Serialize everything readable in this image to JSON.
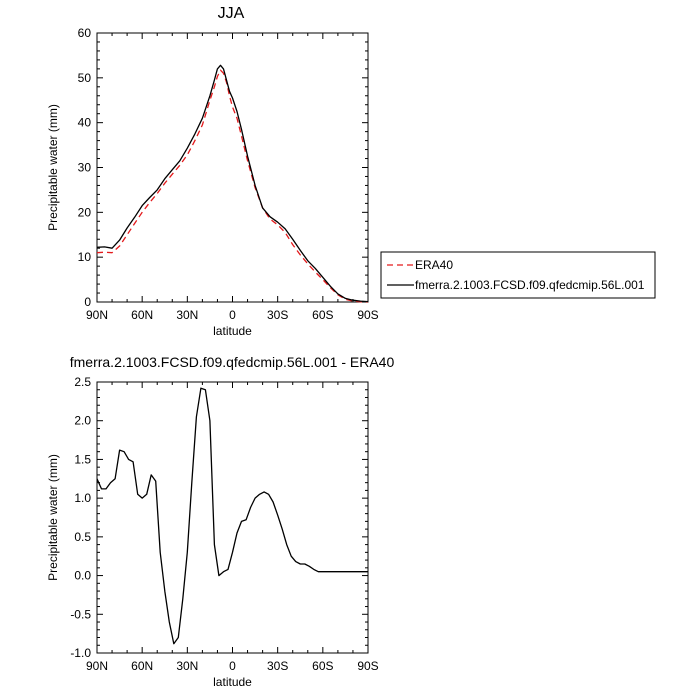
{
  "chart_data": [
    {
      "type": "line",
      "title": "JJA",
      "xlabel": "latitude",
      "ylabel": "Precipitable water (mm)",
      "x_ticks": [
        "90N",
        "60N",
        "30N",
        "0",
        "30S",
        "60S",
        "90S"
      ],
      "y_ticks": [
        "0",
        "10",
        "20",
        "30",
        "40",
        "50",
        "60"
      ],
      "xlim": [
        90,
        -90
      ],
      "ylim": [
        0,
        60
      ],
      "legend_position": "right",
      "series": [
        {
          "name": "ERA40",
          "color": "#e41a1c",
          "dash": "dashed",
          "x": [
            90,
            85,
            80,
            75,
            70,
            65,
            60,
            55,
            50,
            45,
            40,
            35,
            30,
            25,
            20,
            15,
            12,
            10,
            8,
            6,
            4,
            2,
            0,
            -3,
            -6,
            -10,
            -15,
            -20,
            -25,
            -30,
            -35,
            -40,
            -45,
            -50,
            -55,
            -60,
            -65,
            -70,
            -75,
            -80,
            -85,
            -90
          ],
          "y": [
            11.0,
            11.1,
            11.0,
            12.5,
            15.0,
            17.5,
            20.0,
            22.2,
            24.2,
            26.5,
            28.5,
            30.5,
            32.8,
            36.0,
            39.5,
            45.0,
            48.0,
            50.3,
            51.7,
            51.0,
            49.0,
            46.0,
            43.5,
            41.0,
            37.0,
            31.5,
            25.5,
            21.0,
            18.5,
            17.2,
            15.5,
            12.8,
            10.5,
            8.5,
            6.7,
            5.0,
            3.2,
            1.6,
            0.6,
            0.2,
            0.05,
            0.0
          ]
        },
        {
          "name": "fmerra.2.1003.FCSD.f09.qfedcmip.56L.001",
          "color": "#000000",
          "dash": "solid",
          "x": [
            90,
            85,
            80,
            75,
            70,
            65,
            60,
            55,
            50,
            45,
            40,
            35,
            30,
            25,
            20,
            15,
            12,
            10,
            8,
            6,
            4,
            2,
            0,
            -3,
            -6,
            -10,
            -15,
            -20,
            -25,
            -30,
            -35,
            -40,
            -45,
            -50,
            -55,
            -60,
            -65,
            -70,
            -75,
            -80,
            -85,
            -90
          ],
          "y": [
            12.2,
            12.3,
            12.0,
            13.8,
            16.5,
            18.9,
            21.5,
            23.3,
            25.0,
            27.5,
            29.5,
            31.5,
            34.3,
            37.5,
            41.0,
            46.0,
            49.5,
            52.0,
            52.8,
            52.0,
            49.5,
            47.0,
            45.5,
            42.5,
            38.5,
            32.5,
            26.0,
            21.0,
            19.0,
            17.8,
            16.3,
            14.0,
            11.5,
            9.2,
            7.5,
            5.5,
            3.5,
            1.8,
            0.8,
            0.4,
            0.2,
            0.1
          ]
        }
      ]
    },
    {
      "type": "line",
      "title": "fmerra.2.1003.FCSD.f09.qfedcmip.56L.001 - ERA40",
      "xlabel": "latitude",
      "ylabel": "Precipitable water (mm)",
      "x_ticks": [
        "90N",
        "60N",
        "30N",
        "0",
        "30S",
        "60S",
        "90S"
      ],
      "y_ticks": [
        "-1.0",
        "-0.5",
        "0.0",
        "0.5",
        "1.0",
        "1.5",
        "2.0",
        "2.5"
      ],
      "xlim": [
        90,
        -90
      ],
      "ylim": [
        -1.0,
        2.5
      ],
      "series": [
        {
          "color": "#000000",
          "dash": "solid",
          "x": [
            90,
            87,
            84,
            81,
            78,
            75,
            72,
            69,
            66,
            63,
            60,
            57,
            54,
            51,
            48,
            45,
            42,
            39,
            36,
            33,
            30,
            27,
            24,
            21,
            18,
            15,
            12,
            9,
            6,
            3,
            0,
            -3,
            -6,
            -9,
            -12,
            -15,
            -18,
            -21,
            -24,
            -27,
            -30,
            -33,
            -36,
            -39,
            -42,
            -45,
            -48,
            -51,
            -54,
            -57,
            -60,
            -63,
            -66,
            -69,
            -72,
            -75,
            -78,
            -81,
            -84,
            -87,
            -90
          ],
          "y": [
            1.25,
            1.12,
            1.12,
            1.2,
            1.25,
            1.62,
            1.6,
            1.5,
            1.47,
            1.05,
            1.0,
            1.05,
            1.3,
            1.22,
            0.3,
            -0.2,
            -0.6,
            -0.88,
            -0.8,
            -0.3,
            0.3,
            1.2,
            2.05,
            2.42,
            2.4,
            2.0,
            0.4,
            0.0,
            0.05,
            0.08,
            0.3,
            0.55,
            0.7,
            0.72,
            0.88,
            1.0,
            1.05,
            1.08,
            1.05,
            0.95,
            0.78,
            0.6,
            0.4,
            0.25,
            0.18,
            0.15,
            0.15,
            0.12,
            0.08,
            0.05,
            0.05,
            0.05,
            0.05,
            0.05,
            0.05,
            0.05,
            0.05,
            0.05,
            0.05,
            0.05,
            0.05
          ]
        }
      ]
    }
  ]
}
